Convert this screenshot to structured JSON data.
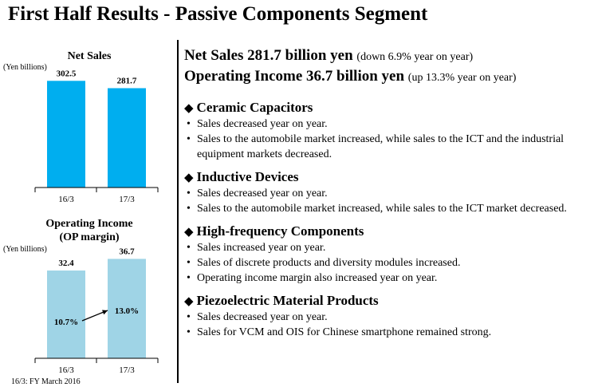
{
  "title": "First Half Results - Passive Components Segment",
  "footnote": "16/3: FY March 2016",
  "headline": {
    "net_sales_main": "Net Sales  281.7 billion yen",
    "net_sales_note": "(down 6.9% year on year)",
    "op_income_main": "Operating Income 36.7 billion yen",
    "op_income_note": "(up 13.3% year on year)"
  },
  "sections": [
    {
      "title": "Ceramic Capacitors",
      "bullets": [
        "Sales decreased year on year.",
        "Sales to the automobile market increased, while sales to the ICT and the industrial equipment markets decreased."
      ]
    },
    {
      "title": "Inductive Devices",
      "bullets": [
        "Sales decreased year on year.",
        "Sales to the automobile market increased, while sales to the ICT market decreased."
      ]
    },
    {
      "title": "High-frequency Components",
      "bullets": [
        "Sales increased year on year.",
        "Sales of discrete products and diversity modules increased.",
        "Operating income margin also increased year on year."
      ]
    },
    {
      "title": "Piezoelectric Material Products",
      "bullets": [
        "Sales decreased year on year.",
        "Sales for VCM and OIS for Chinese smartphone remained strong."
      ]
    }
  ],
  "bullet_symbol": "•",
  "diamond_symbol": "◆",
  "chart_data": [
    {
      "type": "bar",
      "title": "Net Sales",
      "ylabel": "(Yen billions)",
      "categories": [
        "16/3",
        "17/3"
      ],
      "values": [
        302.5,
        281.7
      ],
      "value_labels": [
        "302.5",
        "281.7"
      ],
      "ylim": [
        0,
        310
      ],
      "bar_color": "#00aeef",
      "grid": false
    },
    {
      "type": "bar",
      "title": "Operating Income",
      "subtitle": "(OP margin)",
      "ylabel": "(Yen billions)",
      "categories": [
        "16/3",
        "17/3"
      ],
      "values": [
        32.4,
        36.7
      ],
      "value_labels": [
        "32.4",
        "36.7"
      ],
      "margin_labels": [
        "10.7%",
        "13.0%"
      ],
      "ylim": [
        0,
        38
      ],
      "bar_color": "#9fd4e6",
      "grid": false
    }
  ]
}
